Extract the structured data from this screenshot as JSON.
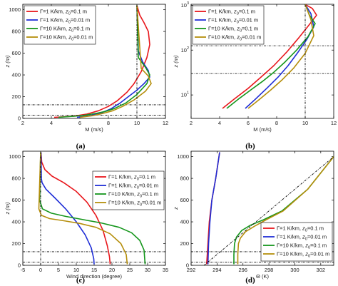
{
  "colors": {
    "r1": "#e8171c",
    "r2": "#1f2ed6",
    "r3": "#15961c",
    "r4": "#b58e0b",
    "ref": "#000000"
  },
  "legend_entries": [
    {
      "gamma": "Γ=1 K/km",
      "z0": "z",
      "sub": "0",
      "val": "=0.1 m"
    },
    {
      "gamma": "Γ=1 K/km",
      "z0": "z",
      "sub": "0",
      "val": "=0.01 m"
    },
    {
      "gamma": "Γ=10 K/km",
      "z0": "z",
      "sub": "0",
      "val": "=0.1 m"
    },
    {
      "gamma": "Γ=10 K/km",
      "z0": "z",
      "sub": "0",
      "val": "=0.01 m"
    }
  ],
  "chart_data": [
    {
      "panel": "(a)",
      "type": "line",
      "xlabel": "M (m/s)",
      "ylabel": "z (m)",
      "xlim": [
        2,
        12
      ],
      "ylim": [
        0,
        1050
      ],
      "xticks": [
        "2",
        "4",
        "6",
        "8",
        "10",
        "12"
      ],
      "xtick_values": [
        2,
        4,
        6,
        8,
        10,
        12
      ],
      "yticks": [
        "0",
        "200",
        "400",
        "600",
        "800",
        "1000"
      ],
      "ytick_values": [
        0,
        200,
        400,
        600,
        800,
        1000
      ],
      "yscale": "linear",
      "legend": "top-left",
      "hlines": [
        125,
        30
      ],
      "series": [
        {
          "name": "Γ=1 K/km, z0=0.1 m",
          "color_key": "r1",
          "x": [
            4.2,
            5.5,
            6.5,
            7.3,
            8.0,
            8.6,
            9.3,
            9.8,
            10.3,
            10.7,
            10.9,
            10.8,
            10.5,
            10.2,
            10.0
          ],
          "y": [
            10,
            20,
            40,
            70,
            110,
            160,
            240,
            320,
            430,
            560,
            680,
            800,
            880,
            950,
            1040
          ]
        },
        {
          "name": "Γ=1 K/km, z0=0.01 m",
          "color_key": "r2",
          "x": [
            5.8,
            6.7,
            7.5,
            8.2,
            8.8,
            9.4,
            10.0,
            10.5,
            10.9,
            10.8,
            10.4,
            10.1,
            10.0
          ],
          "y": [
            10,
            25,
            50,
            90,
            140,
            200,
            260,
            320,
            380,
            440,
            520,
            620,
            1040
          ]
        },
        {
          "name": "Γ=10 K/km, z0=0.1 m",
          "color_key": "r3",
          "x": [
            4.5,
            5.6,
            6.4,
            7.1,
            7.8,
            8.4,
            9.2,
            10.0,
            10.7,
            10.9,
            10.6,
            10.1,
            10.0
          ],
          "y": [
            10,
            20,
            30,
            45,
            65,
            90,
            140,
            220,
            320,
            400,
            470,
            560,
            1040
          ]
        },
        {
          "name": "Γ=10 K/km, z0=0.01 m",
          "color_key": "r4",
          "x": [
            6.0,
            6.9,
            7.6,
            8.3,
            9.0,
            9.8,
            10.6,
            11.0,
            10.8,
            10.3,
            10.0
          ],
          "y": [
            10,
            25,
            45,
            70,
            110,
            170,
            250,
            320,
            390,
            460,
            1040
          ]
        },
        {
          "name": "",
          "color_key": "ref",
          "x": [
            10,
            10
          ],
          "y": [
            0,
            1040
          ]
        }
      ]
    },
    {
      "panel": "(b)",
      "type": "line",
      "xlabel": "M (m/s)",
      "ylabel": "z (m)",
      "xlim": [
        2,
        12
      ],
      "ylim": [
        3,
        1050
      ],
      "xticks": [
        "2",
        "4",
        "6",
        "8",
        "10",
        "12"
      ],
      "xtick_values": [
        2,
        4,
        6,
        8,
        10,
        12
      ],
      "yticks": [
        "10",
        "10",
        "10"
      ],
      "ytick_exponents": [
        "1",
        "2",
        "3"
      ],
      "ytick_values": [
        10,
        100,
        1000
      ],
      "yscale": "log",
      "legend": "top-left",
      "hlines": [
        125,
        30
      ],
      "series": [
        {
          "name": "Γ=1 K/km, z0=0.1 m",
          "color_key": "r1",
          "x": [
            4.2,
            5.0,
            6.0,
            6.9,
            7.8,
            8.7,
            9.5,
            10.2,
            10.8,
            10.5,
            10.0
          ],
          "y": [
            5,
            8,
            14,
            25,
            45,
            90,
            180,
            340,
            600,
            850,
            1040
          ]
        },
        {
          "name": "Γ=1 K/km, z0=0.01 m",
          "color_key": "r2",
          "x": [
            5.8,
            6.5,
            7.3,
            8.1,
            8.8,
            9.5,
            10.1,
            10.6,
            10.4,
            10.0
          ],
          "y": [
            5,
            8,
            14,
            25,
            45,
            90,
            170,
            330,
            650,
            1040
          ]
        },
        {
          "name": "Γ=10 K/km, z0=0.1 m",
          "color_key": "r3",
          "x": [
            4.5,
            5.3,
            6.2,
            7.0,
            7.8,
            8.6,
            9.4,
            10.2,
            10.7,
            10.3,
            10.0
          ],
          "y": [
            5,
            8,
            13,
            20,
            32,
            55,
            100,
            200,
            390,
            600,
            1040
          ]
        },
        {
          "name": "Γ=10 K/km, z0=0.01 m",
          "color_key": "r4",
          "x": [
            6.0,
            6.8,
            7.6,
            8.4,
            9.2,
            10.0,
            10.6,
            10.4,
            10.0
          ],
          "y": [
            5,
            8,
            13,
            22,
            40,
            85,
            210,
            480,
            1040
          ]
        },
        {
          "name": "",
          "color_key": "ref",
          "x": [
            10,
            10
          ],
          "y": [
            3,
            1040
          ]
        }
      ]
    },
    {
      "panel": "(c)",
      "type": "line",
      "xlabel": "Wind direction (degree)",
      "ylabel": "z (m)",
      "xlim": [
        -5,
        35
      ],
      "ylim": [
        0,
        1050
      ],
      "xticks": [
        "-5",
        "0",
        "5",
        "10",
        "15",
        "20",
        "25",
        "30",
        "35"
      ],
      "xtick_values": [
        -5,
        0,
        5,
        10,
        15,
        20,
        25,
        30,
        35
      ],
      "yticks": [
        "0",
        "200",
        "400",
        "600",
        "800",
        "1000"
      ],
      "ytick_values": [
        0,
        200,
        400,
        600,
        800,
        1000
      ],
      "yscale": "linear",
      "legend": "top-right",
      "hlines": [
        125,
        30
      ],
      "series": [
        {
          "name": "Γ=1 K/km, z0=0.1 m",
          "color_key": "r1",
          "x": [
            0.1,
            0.3,
            1.2,
            3.2,
            6.5,
            10.0,
            13.0,
            15.5,
            17.5,
            18.7,
            19.3,
            19.5
          ],
          "y": [
            1040,
            950,
            880,
            820,
            760,
            680,
            580,
            460,
            320,
            180,
            80,
            10
          ]
        },
        {
          "name": "Γ=1 K/km, z0=0.01 m",
          "color_key": "r2",
          "x": [
            0.1,
            0.2,
            0.4,
            1.5,
            4.0,
            7.0,
            10.0,
            12.5,
            14.2,
            14.9,
            15.0
          ],
          "y": [
            1040,
            800,
            760,
            700,
            620,
            520,
            400,
            280,
            160,
            60,
            10
          ]
        },
        {
          "name": "Γ=10 K/km, z0=0.1 m",
          "color_key": "r3",
          "x": [
            0.0,
            -0.3,
            0.5,
            3.0,
            7.0,
            12.0,
            17.0,
            22.0,
            25.5,
            27.8,
            29.0,
            29.3
          ],
          "y": [
            1040,
            600,
            520,
            480,
            450,
            420,
            390,
            350,
            300,
            230,
            140,
            10
          ]
        },
        {
          "name": "Γ=10 K/km, z0=0.01 m",
          "color_key": "r4",
          "x": [
            0.0,
            -0.5,
            0.2,
            2.5,
            6.5,
            11.0,
            15.5,
            19.5,
            22.5,
            24.0,
            24.3
          ],
          "y": [
            1040,
            520,
            460,
            430,
            410,
            385,
            350,
            290,
            200,
            100,
            10
          ]
        },
        {
          "name": "",
          "color_key": "ref",
          "x": [
            0,
            0
          ],
          "y": [
            0,
            1040
          ]
        }
      ]
    },
    {
      "panel": "(d)",
      "type": "line",
      "xlabel": "Θ (K)",
      "ylabel": "z",
      "xlim": [
        292,
        303
      ],
      "ylim": [
        0,
        1050
      ],
      "xticks": [
        "292",
        "294",
        "296",
        "298",
        "300",
        "302"
      ],
      "xtick_values": [
        292,
        294,
        296,
        298,
        300,
        302
      ],
      "yticks": [
        "0",
        "200",
        "400",
        "600",
        "800",
        "1000"
      ],
      "ytick_values": [
        0,
        200,
        400,
        600,
        800,
        1000
      ],
      "yscale": "linear",
      "legend": "bottom-right",
      "hlines": [
        125,
        30
      ],
      "series": [
        {
          "name": "Γ=1 K/km, z0=0.1 m",
          "color_key": "r1",
          "x": [
            293.2,
            293.3,
            293.4,
            293.6,
            293.9,
            294.2
          ],
          "y": [
            10,
            200,
            400,
            600,
            800,
            1040
          ]
        },
        {
          "name": "Γ=1 K/km, z0=0.01 m",
          "color_key": "r2",
          "x": [
            293.3,
            293.35,
            293.45,
            293.6,
            293.9,
            294.2
          ],
          "y": [
            10,
            200,
            400,
            600,
            800,
            1040
          ]
        },
        {
          "name": "Γ=10 K/km, z0=0.1 m",
          "color_key": "r3",
          "x": [
            295.3,
            295.3,
            295.35,
            295.5,
            295.9,
            296.6,
            297.6,
            299.0,
            301.0,
            303.0
          ],
          "y": [
            10,
            100,
            200,
            260,
            320,
            370,
            420,
            500,
            700,
            1000
          ]
        },
        {
          "name": "Γ=10 K/km, z0=0.01 m",
          "color_key": "r4",
          "x": [
            295.6,
            295.6,
            295.65,
            295.8,
            296.2,
            296.9,
            297.8,
            299.1,
            301.0,
            303.0
          ],
          "y": [
            10,
            100,
            200,
            250,
            310,
            360,
            420,
            500,
            700,
            1000
          ]
        },
        {
          "name": "",
          "color_key": "ref",
          "x": [
            293.0,
            303.0
          ],
          "y": [
            0,
            1000
          ]
        }
      ]
    }
  ]
}
